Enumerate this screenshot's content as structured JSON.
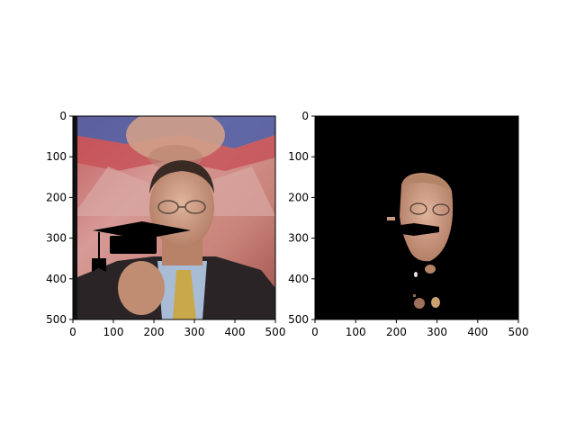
{
  "figure": {
    "background": "#ffffff",
    "panels": [
      {
        "id": "left",
        "description_kind": "photo-with-hat-overlay",
        "x_ticks": [
          "0",
          "100",
          "200",
          "300",
          "400",
          "500"
        ],
        "y_ticks": [
          "0",
          "100",
          "200",
          "300",
          "400",
          "500"
        ],
        "xlim": [
          0,
          500
        ],
        "ylim": [
          500,
          0
        ]
      },
      {
        "id": "right",
        "description_kind": "segmented-face-mask",
        "x_ticks": [
          "0",
          "100",
          "200",
          "300",
          "400",
          "500"
        ],
        "y_ticks": [
          "0",
          "100",
          "200",
          "300",
          "400",
          "500"
        ],
        "xlim": [
          0,
          500
        ],
        "ylim": [
          500,
          0
        ]
      }
    ]
  },
  "colors": {
    "mask_background": "#000000",
    "skin": "#c89a82",
    "skin_dark": "#a0715a",
    "banner_red": "#b0504f",
    "banner_blue": "#4b5fa8",
    "suit": "#2a2426",
    "shirt": "#a9bcd6",
    "tie": "#c9a84a",
    "hat": "#000000"
  }
}
